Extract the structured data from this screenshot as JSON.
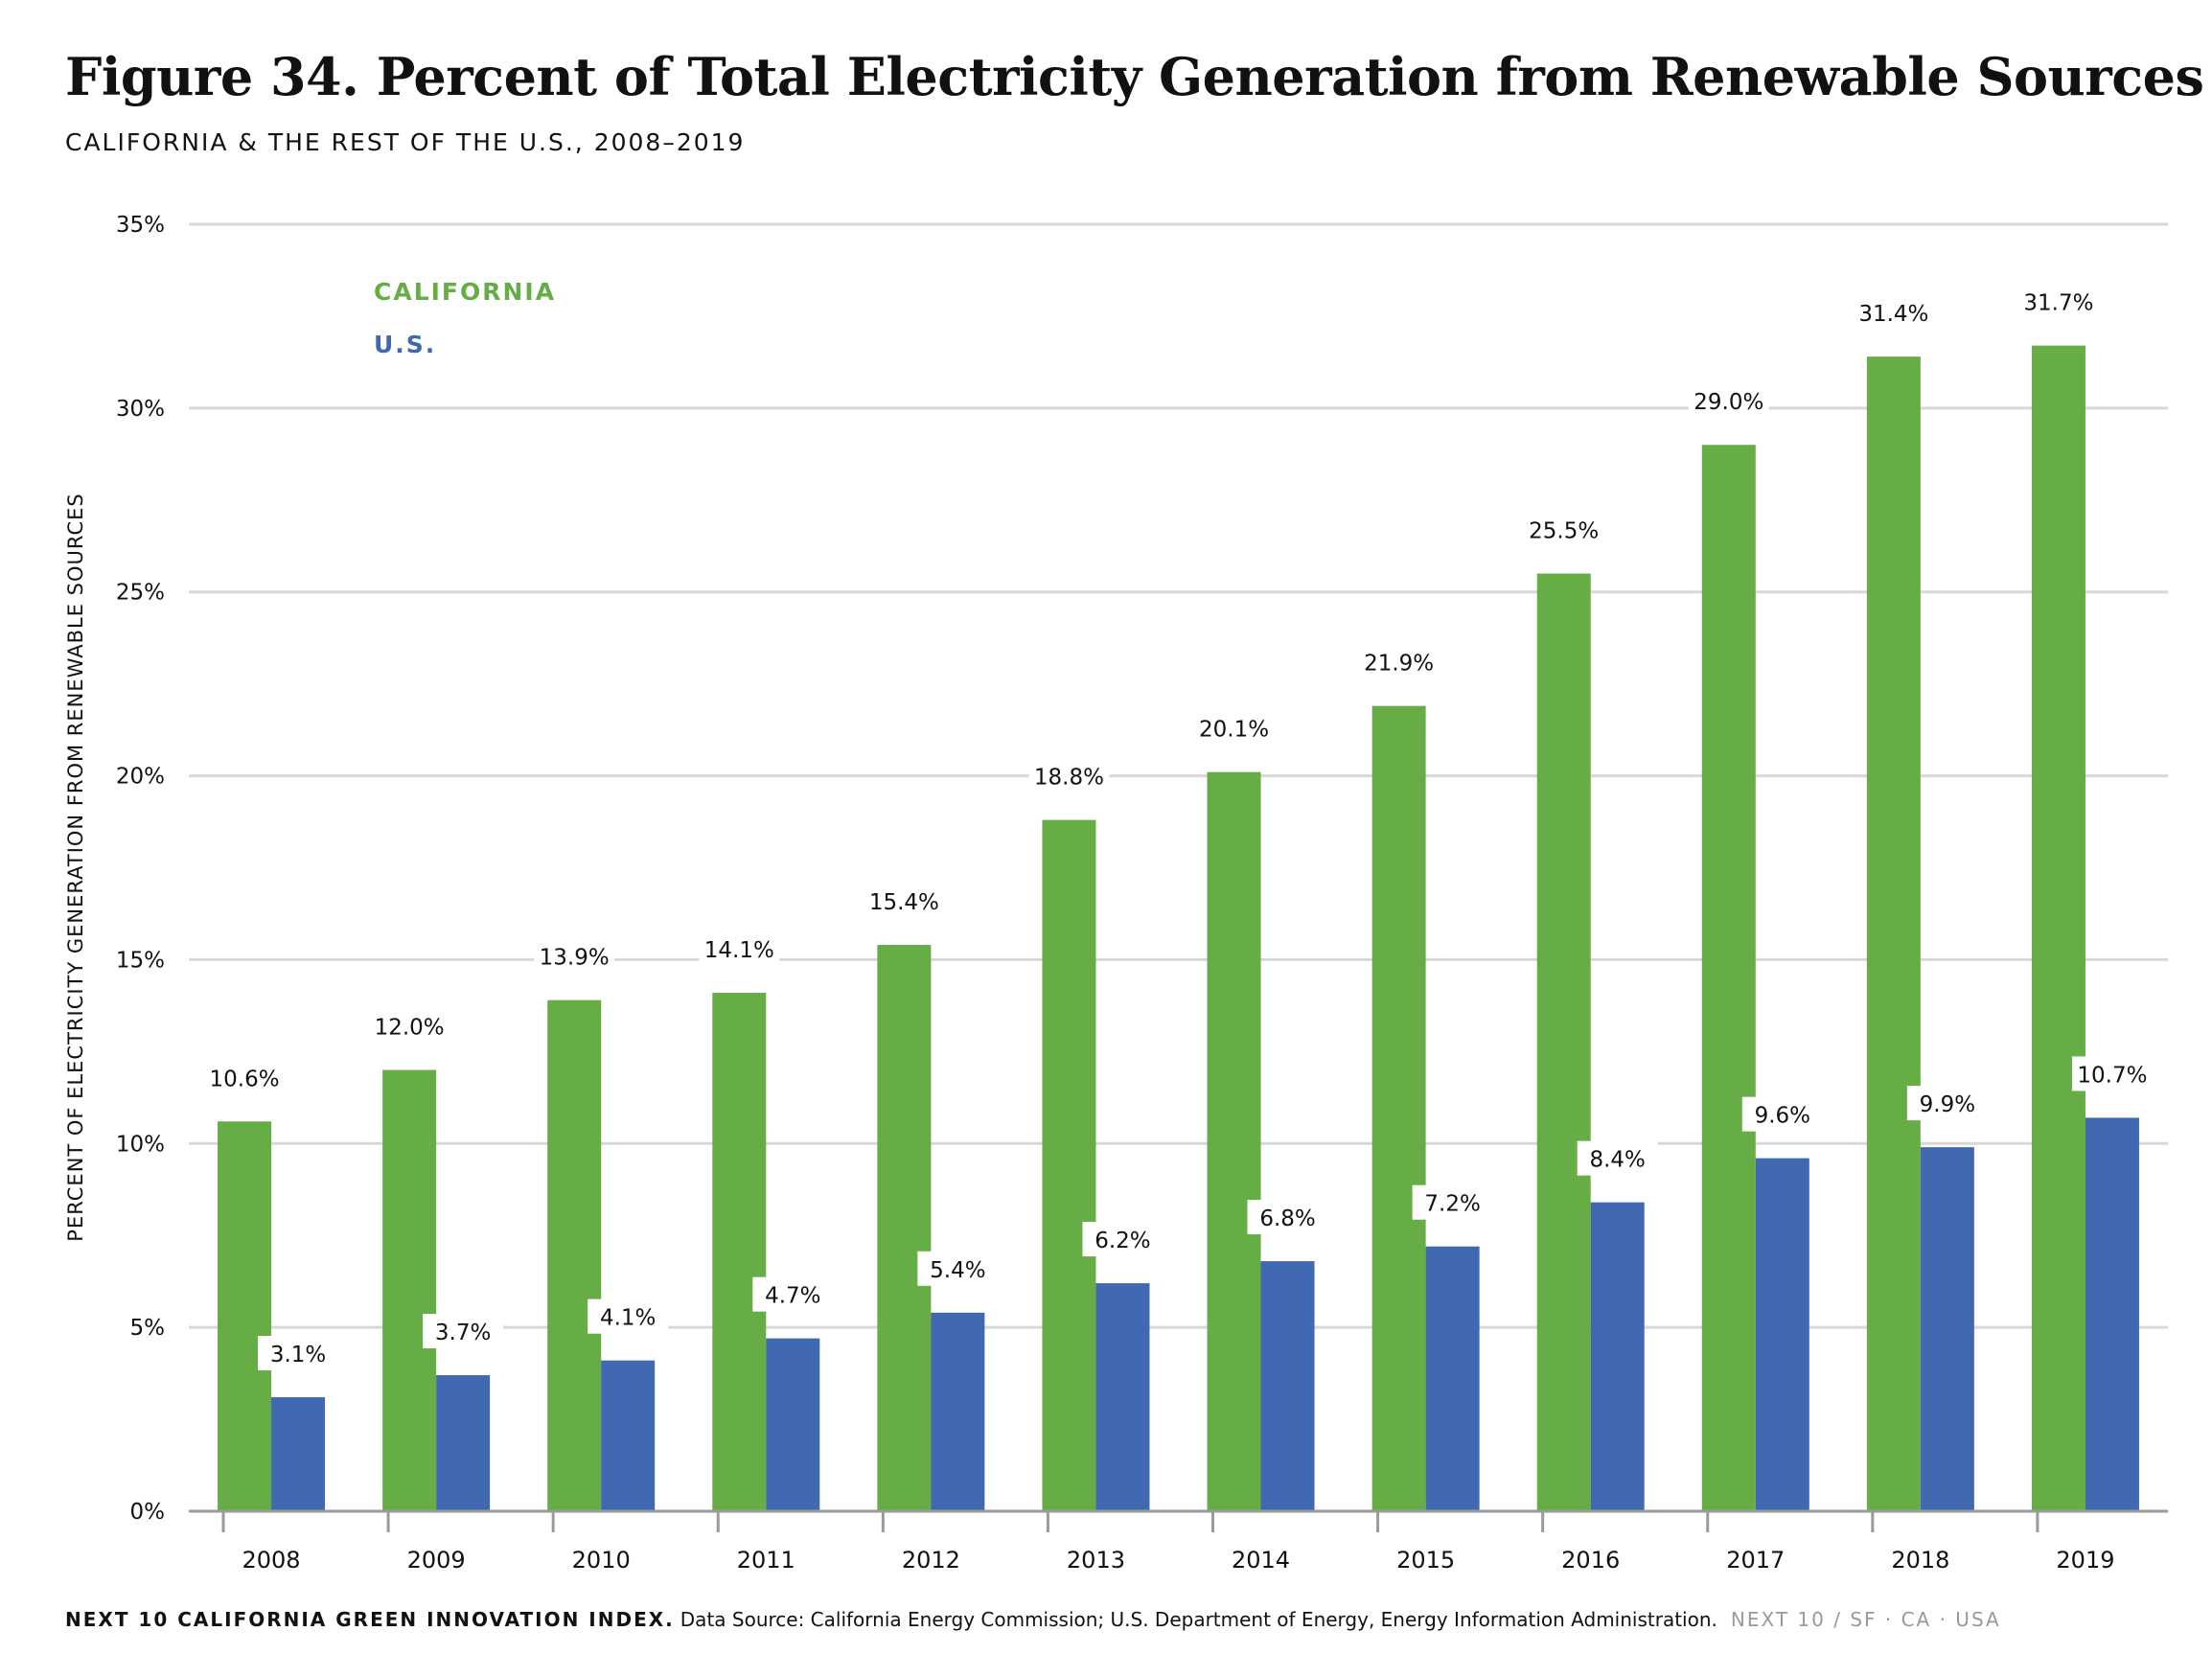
{
  "title": "Figure 34. Percent of Total Electricity Generation from Renewable Sources",
  "subtitle": "CALIFORNIA & THE REST OF THE U.S., 2008–2019",
  "footer": {
    "index": "NEXT 10 CALIFORNIA GREEN INNOVATION INDEX.",
    "source": "Data Source: California Energy Commission; U.S. Department of Energy, Energy Information Administration.",
    "brand": "NEXT 10 / SF · CA · USA"
  },
  "chart_data": {
    "type": "bar",
    "title": "Figure 34. Percent of Total Electricity Generation from Renewable Sources",
    "subtitle": "CALIFORNIA & THE REST OF THE U.S., 2008–2019",
    "xlabel": "",
    "ylabel": "PERCENT OF ELECTRICITY GENERATION FROM RENEWABLE SOURCES",
    "ylim": [
      0,
      35
    ],
    "yticks": [
      0,
      5,
      10,
      15,
      20,
      25,
      30,
      35
    ],
    "ytick_labels": [
      "0%",
      "5%",
      "10%",
      "15%",
      "20%",
      "25%",
      "30%",
      "35%"
    ],
    "grid": true,
    "legend_position": "top-left",
    "categories": [
      "2008",
      "2009",
      "2010",
      "2011",
      "2012",
      "2013",
      "2014",
      "2015",
      "2016",
      "2017",
      "2018",
      "2019"
    ],
    "series": [
      {
        "name": "CALIFORNIA",
        "color": "#67ad46",
        "values": [
          10.6,
          12.0,
          13.9,
          14.1,
          15.4,
          18.8,
          20.1,
          21.9,
          25.5,
          29.0,
          31.4,
          31.7
        ],
        "labels": [
          "10.6%",
          "12.0%",
          "13.9%",
          "14.1%",
          "15.4%",
          "18.8%",
          "20.1%",
          "21.9%",
          "25.5%",
          "29.0%",
          "31.4%",
          "31.7%"
        ]
      },
      {
        "name": "U.S.",
        "color": "#4169b2",
        "values": [
          3.1,
          3.7,
          4.1,
          4.7,
          5.4,
          6.2,
          6.8,
          7.2,
          8.4,
          9.6,
          9.9,
          10.7
        ],
        "labels": [
          "3.1%",
          "3.7%",
          "4.1%",
          "4.7%",
          "5.4%",
          "6.2%",
          "6.8%",
          "7.2%",
          "8.4%",
          "9.6%",
          "9.9%",
          "10.7%"
        ]
      }
    ]
  }
}
